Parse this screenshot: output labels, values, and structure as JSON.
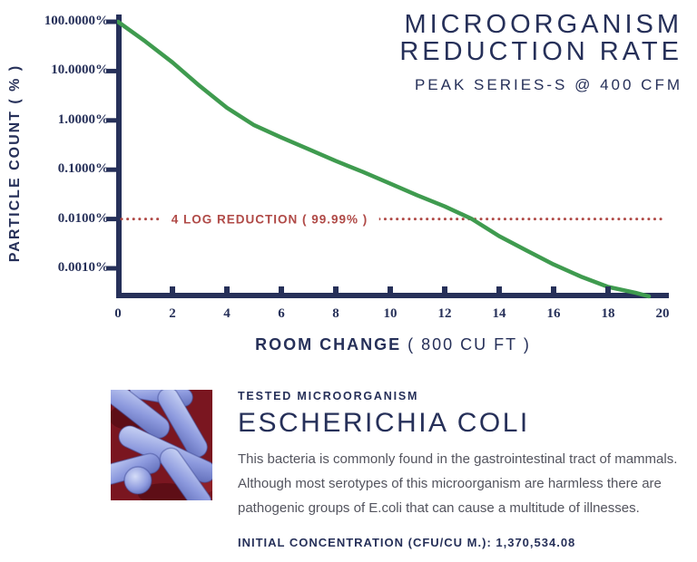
{
  "colors": {
    "navy": "#263059",
    "green": "#3f9b4f",
    "maroon": "#b04a47",
    "description_gray": "#53545e",
    "bacteria_background_red": "#7a1620",
    "bacteria_blue": "#8d9ade"
  },
  "header": {
    "title_line1": "MICROORGANISM",
    "title_line2": "REDUCTION RATE",
    "subtitle": "PEAK SERIES-S @ 400 CFM"
  },
  "chart_data": {
    "type": "line",
    "title": "MICROORGANISM REDUCTION RATE",
    "subtitle": "PEAK SERIES-S @ 400 CFM",
    "xlabel": "ROOM CHANGE ( 800 CU FT )",
    "ylabel": "PARTICLE COUNT ( % )",
    "x_scale": "linear",
    "y_scale": "log",
    "xlim": [
      0,
      20
    ],
    "ylim": [
      0.00027,
      100
    ],
    "grid": false,
    "legend": "none",
    "x_ticks": [
      0,
      2,
      4,
      6,
      8,
      10,
      12,
      14,
      16,
      18,
      20
    ],
    "y_tick_labels": [
      "100.0000%",
      "10.0000%",
      "1.0000%",
      "0.1000%",
      "0.0100%",
      "0.0010%"
    ],
    "y_tick_values": [
      100,
      10,
      1,
      0.1,
      0.01,
      0.001
    ],
    "series": [
      {
        "name": "PEAK Series-S @ 400 CFM particle count",
        "color": "#3f9b4f",
        "x": [
          0,
          1,
          2,
          3,
          4,
          5,
          6,
          7,
          8,
          9,
          10,
          11,
          12,
          13,
          14,
          15,
          16,
          17,
          18,
          19,
          19.5
        ],
        "y": [
          100,
          40,
          15,
          5,
          1.8,
          0.8,
          0.45,
          0.26,
          0.15,
          0.09,
          0.052,
          0.03,
          0.018,
          0.01,
          0.0045,
          0.0023,
          0.0012,
          0.00068,
          0.00042,
          0.00032,
          0.00027
        ]
      }
    ],
    "annotations": [
      {
        "label": "4 LOG REDUCTION  ( 99.99% )",
        "y": 0.01,
        "style": "dotted",
        "color": "#b04a47"
      }
    ]
  },
  "x_axis": {
    "label_bold": "ROOM CHANGE",
    "label_light": " ( 800 CU FT )"
  },
  "y_axis": {
    "label": "PARTICLE COUNT  ( % )"
  },
  "info": {
    "eyebrow": "TESTED MICROORGANISM",
    "name": "ESCHERICHIA COLI",
    "description_lines": [
      "This bacteria is commonly found in the gastrointestinal tract of mammals.",
      "Although most serotypes of this microorganism are harmless there are",
      "pathogenic groups of E.coli that can cause a multitude of illnesses."
    ],
    "initial_concentration": "INITIAL CONCENTRATION (CFU/CU M.): 1,370,534.08"
  }
}
